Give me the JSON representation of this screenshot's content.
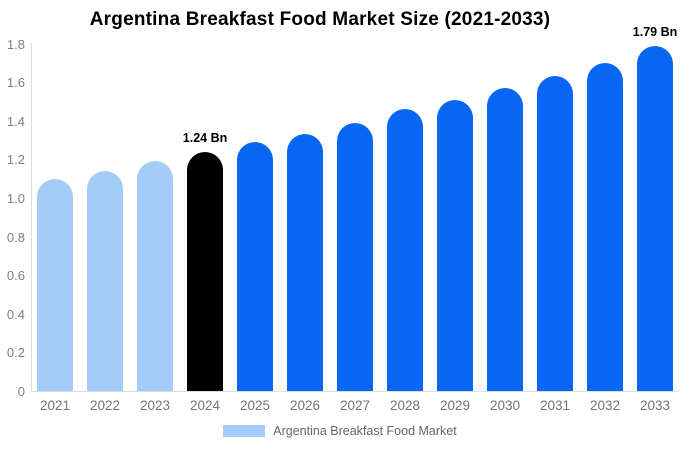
{
  "title": "Argentina Breakfast Food Market Size (2021-2033)",
  "legend": {
    "label": "Argentina Breakfast Food Market"
  },
  "colors": {
    "light_blue": "#A3CCF8",
    "blue": "#0866F5",
    "black": "#000000",
    "axis_line": "#DDDDDD",
    "tick_text": "#7F7F7F",
    "legend_text": "#666666",
    "background": "#FFFFFF"
  },
  "chart_data": {
    "type": "bar",
    "title": "Argentina Breakfast Food Market Size (2021-2033)",
    "unit": "Bn",
    "categories": [
      "2021",
      "2022",
      "2023",
      "2024",
      "2025",
      "2026",
      "2027",
      "2028",
      "2029",
      "2030",
      "2031",
      "2032",
      "2033"
    ],
    "values": [
      1.1,
      1.14,
      1.19,
      1.24,
      1.29,
      1.33,
      1.39,
      1.46,
      1.51,
      1.57,
      1.63,
      1.7,
      1.79
    ],
    "bar_colors": [
      "#A3CCF8",
      "#A3CCF8",
      "#A3CCF8",
      "#000000",
      "#0866F5",
      "#0866F5",
      "#0866F5",
      "#0866F5",
      "#0866F5",
      "#0866F5",
      "#0866F5",
      "#0866F5",
      "#0866F5"
    ],
    "xlabel": "",
    "ylabel": "",
    "ylim": [
      0,
      1.8
    ],
    "yticks": [
      {
        "v": 0,
        "label": "0"
      },
      {
        "v": 0.2,
        "label": "0.2"
      },
      {
        "v": 0.4,
        "label": "0.4"
      },
      {
        "v": 0.6,
        "label": "0.6"
      },
      {
        "v": 0.8,
        "label": "0.8"
      },
      {
        "v": 1.0,
        "label": "1.0"
      },
      {
        "v": 1.2,
        "label": "1.2"
      },
      {
        "v": 1.4,
        "label": "1.4"
      },
      {
        "v": 1.6,
        "label": "1.6"
      },
      {
        "v": 1.8,
        "label": "1.8"
      }
    ],
    "grid": false,
    "legend_entries": [
      "Argentina Breakfast Food Market"
    ],
    "legend_position": "bottom",
    "annotations": [
      {
        "category": "2024",
        "text": "1.24 Bn"
      },
      {
        "category": "2033",
        "text": "1.79 Bn"
      }
    ]
  }
}
